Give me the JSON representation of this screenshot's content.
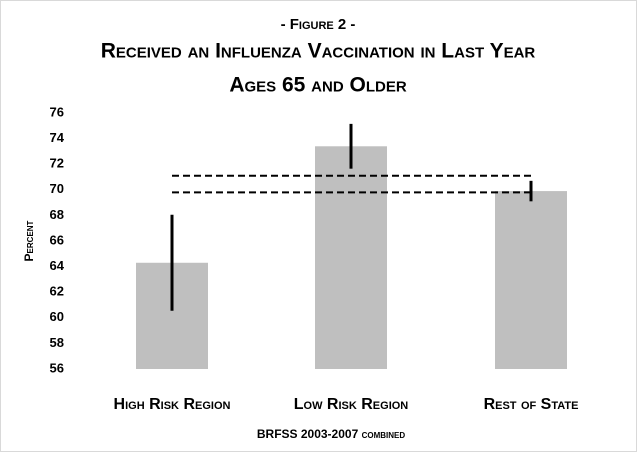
{
  "chart_data": {
    "type": "bar",
    "figure_label": "- Figure 2 -",
    "title": "Received an Influenza Vaccination in Last Year",
    "subtitle": "Ages 65 and Older",
    "y_label": "Percent",
    "x_label": "BRFSS 2003-2007 combined",
    "categories": [
      "High Risk Region",
      "Low Risk Region",
      "Rest of State"
    ],
    "values": [
      64.3,
      73.4,
      69.9
    ],
    "errors": [
      3.75,
      1.75,
      0.8
    ],
    "color": "#bfbfbf",
    "error_color": "#000000",
    "reference_lines": [
      71.1,
      69.8
    ],
    "ylim": [
      56,
      76
    ],
    "yticks": [
      56,
      58,
      60,
      62,
      64,
      66,
      68,
      70,
      72,
      74,
      76
    ],
    "grid": false
  }
}
